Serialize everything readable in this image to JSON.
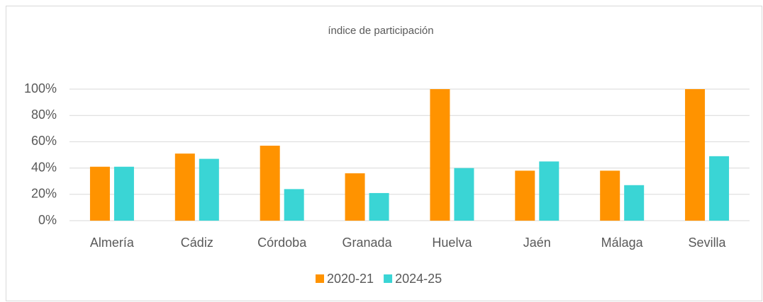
{
  "chart_data": {
    "type": "bar",
    "title": "índice de participación",
    "categories": [
      "Almería",
      "Cádiz",
      "Córdoba",
      "Granada",
      "Huelva",
      "Jaén",
      "Málaga",
      "Sevilla"
    ],
    "series": [
      {
        "name": "2020-21",
        "color": "#ff9300",
        "values": [
          41,
          51,
          57,
          36,
          100,
          38,
          38,
          100
        ]
      },
      {
        "name": "2024-25",
        "color": "#3ad5d5",
        "values": [
          41,
          47,
          24,
          21,
          40,
          45,
          27,
          49
        ]
      }
    ],
    "ylim": [
      0,
      100
    ],
    "yticks": [
      {
        "value": 0,
        "label": "0%"
      },
      {
        "value": 20,
        "label": "20%"
      },
      {
        "value": 40,
        "label": "40%"
      },
      {
        "value": 60,
        "label": "60%"
      },
      {
        "value": 80,
        "label": "80%"
      },
      {
        "value": 100,
        "label": "100%"
      }
    ],
    "grid": true,
    "legend": "bottom"
  }
}
